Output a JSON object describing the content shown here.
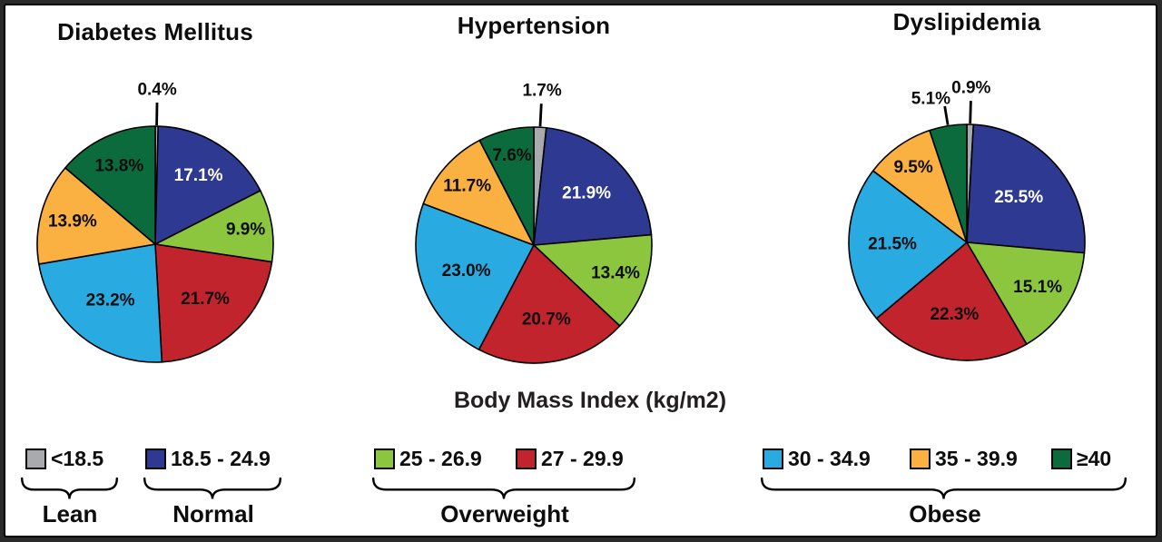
{
  "figure": {
    "bmi_axis_title": "Body Mass Index (kg/m2)"
  },
  "palette": {
    "frame_outer": "#2A2A2A",
    "panel_background": "#FFFFFF",
    "line_color": "#000000",
    "slice_colors": [
      "#A8AAAD",
      "#2E3A92",
      "#8CC63F",
      "#C2242E",
      "#29ABE2",
      "#FBB042",
      "#0C6B3C"
    ],
    "slice_label_text_colors": [
      "#0D0D0D",
      "#FFFFFF",
      "#0D0D0D",
      "#0D0D0D",
      "#0D0D0D",
      "#0D0D0D",
      "#0D0D0D"
    ]
  },
  "chart_data": [
    {
      "type": "pie",
      "title": "Diabetes Mellitus",
      "categories": [
        "<18.5",
        "18.5 - 24.9",
        "25 - 26.9",
        "27 - 29.9",
        "30 - 34.9",
        "35 - 39.9",
        "≥40"
      ],
      "values": [
        0.4,
        17.1,
        9.9,
        21.7,
        23.2,
        13.9,
        13.8
      ],
      "value_labels": [
        "0.4%",
        "17.1%",
        "9.9%",
        "21.7%",
        "23.2%",
        "13.9%",
        "13.8%"
      ],
      "start_angle": "12 o'clock",
      "direction": "clockwise"
    },
    {
      "type": "pie",
      "title": "Hypertension",
      "categories": [
        "<18.5",
        "18.5 - 24.9",
        "25 - 26.9",
        "27 - 29.9",
        "30 - 34.9",
        "35 - 39.9",
        "≥40"
      ],
      "values": [
        1.7,
        21.9,
        13.4,
        20.7,
        23.0,
        11.7,
        7.6
      ],
      "value_labels": [
        "1.7%",
        "21.9%",
        "13.4%",
        "20.7%",
        "23.0%",
        "11.7%",
        "7.6%"
      ],
      "start_angle": "12 o'clock",
      "direction": "clockwise"
    },
    {
      "type": "pie",
      "title": "Dyslipidemia",
      "categories": [
        "<18.5",
        "18.5 - 24.9",
        "25 - 26.9",
        "27 - 29.9",
        "30 - 34.9",
        "35 - 39.9",
        "≥40"
      ],
      "values": [
        0.9,
        25.5,
        15.1,
        22.3,
        21.5,
        9.5,
        5.1
      ],
      "value_labels": [
        "0.9%",
        "25.5%",
        "15.1%",
        "22.3%",
        "21.5%",
        "9.5%",
        "5.1%"
      ],
      "start_angle": "12 o'clock",
      "direction": "clockwise"
    }
  ],
  "legend": {
    "items": [
      {
        "label": "<18.5",
        "color_index": 0
      },
      {
        "label": "18.5 - 24.9",
        "color_index": 1
      },
      {
        "label": "25 - 26.9",
        "color_index": 2
      },
      {
        "label": "27 - 29.9",
        "color_index": 3
      },
      {
        "label": "30 - 34.9",
        "color_index": 4
      },
      {
        "label": "35 - 39.9",
        "color_index": 5
      },
      {
        "label": "≥40",
        "color_index": 6
      }
    ],
    "groups": [
      {
        "label": "Lean",
        "item_labels": [
          "<18.5"
        ]
      },
      {
        "label": "Normal",
        "item_labels": [
          "18.5 - 24.9"
        ]
      },
      {
        "label": "Overweight",
        "item_labels": [
          "25 - 26.9",
          "27 - 29.9"
        ]
      },
      {
        "label": "Obese",
        "item_labels": [
          "30 - 34.9",
          "35 - 39.9",
          "≥40"
        ]
      }
    ]
  }
}
